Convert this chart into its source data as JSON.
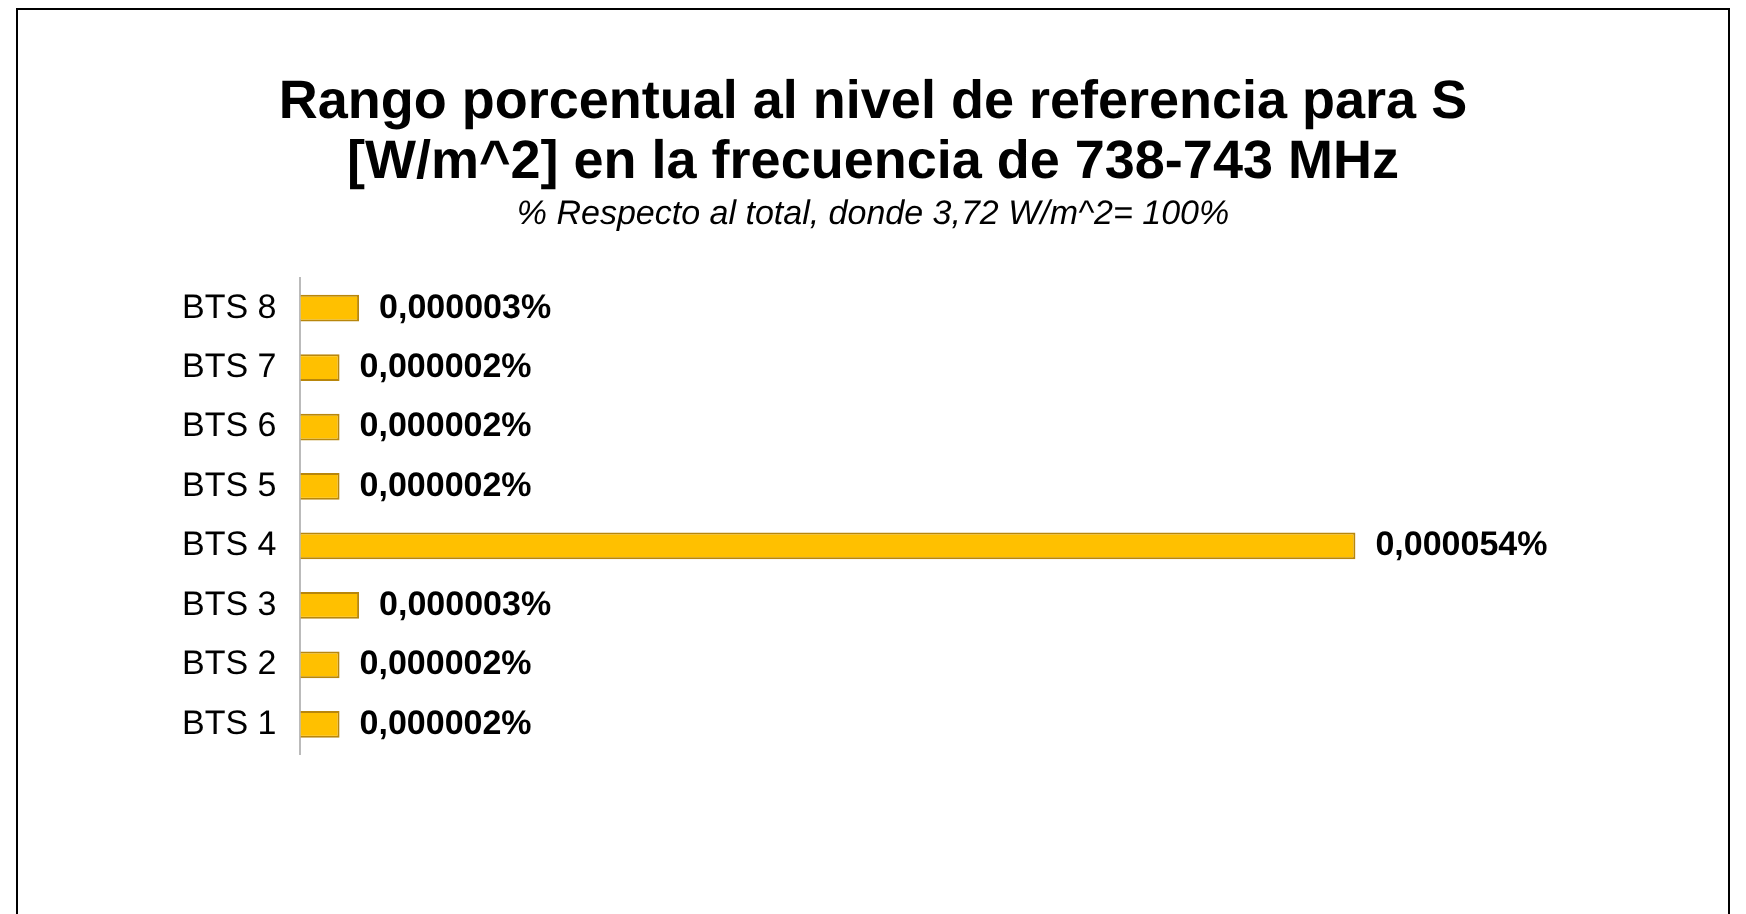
{
  "chart_data": {
    "type": "bar",
    "orientation": "horizontal",
    "title": "Rango porcentual al nivel de referencia para S [W/m^2] en la frecuencia de 738-743 MHz",
    "subtitle": "% Respecto al total, donde 3,72 W/m^2= 100%",
    "categories": [
      "BTS 8",
      "BTS 7",
      "BTS 6",
      "BTS 5",
      "BTS 4",
      "BTS 3",
      "BTS 2",
      "BTS 1"
    ],
    "values": [
      3e-06,
      2e-06,
      2e-06,
      2e-06,
      5.4e-05,
      3e-06,
      2e-06,
      2e-06
    ],
    "value_labels": [
      "0,000003%",
      "0,000002%",
      "0,000002%",
      "0,000002%",
      "0,000054%",
      "0,000003%",
      "0,000002%",
      "0,000002%"
    ],
    "color": "#ffc000",
    "grid": false,
    "legend": false
  }
}
